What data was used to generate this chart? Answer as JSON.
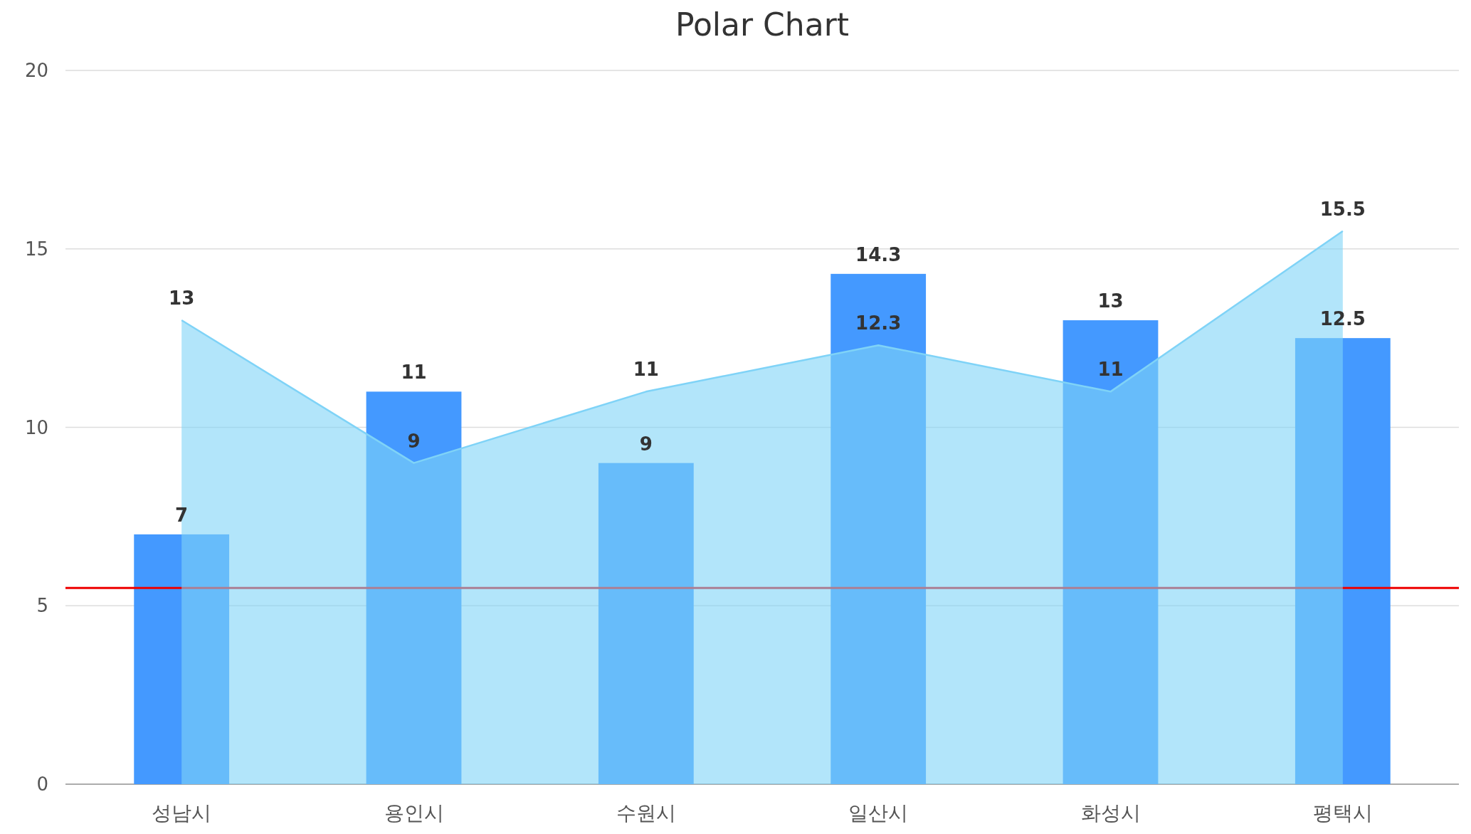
{
  "chart_data": {
    "type": "bar",
    "title": "Polar Chart",
    "categories": [
      "성남시",
      "용인시",
      "수원시",
      "일산시",
      "화성시",
      "평택시"
    ],
    "series": [
      {
        "color": "#4499ff",
        "values": [
          7,
          11,
          9,
          14.3,
          13,
          12.5
        ]
      },
      {
        "type": "area",
        "color": "#7fd3f7",
        "values": [
          13,
          9,
          11,
          12.3,
          11,
          15.5
        ]
      }
    ],
    "ylim": [
      0,
      20
    ],
    "yticks": [
      0,
      5,
      10,
      15,
      20
    ],
    "grid": "y",
    "data_labels": true,
    "ref_lines": [
      {
        "axis": "y",
        "value": 5.5,
        "color": "#ee0000"
      }
    ]
  }
}
